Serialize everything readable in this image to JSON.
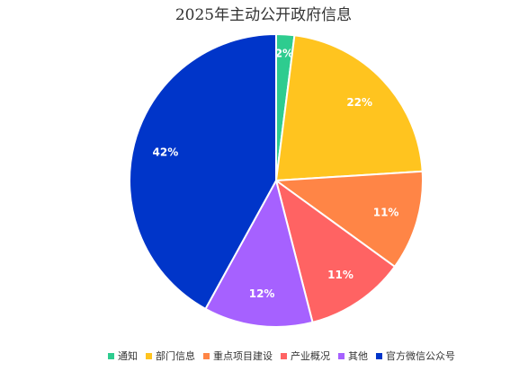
{
  "chart_data": {
    "type": "pie",
    "title": "2025年主动公开政府信息",
    "legend_position": "bottom",
    "slices": [
      {
        "label": "通知",
        "value": 2,
        "display": "2%",
        "color": "#2ecc8f"
      },
      {
        "label": "部门信息",
        "value": 22,
        "display": "22%",
        "color": "#ffc41f"
      },
      {
        "label": "重点项目建设",
        "value": 11,
        "display": "11%",
        "color": "#ff8546"
      },
      {
        "label": "产业概况",
        "value": 11,
        "display": "11%",
        "color": "#ff6363"
      },
      {
        "label": "其他",
        "value": 12,
        "display": "12%",
        "color": "#a661ff"
      },
      {
        "label": "官方微信公众号",
        "value": 42,
        "display": "42%",
        "color": "#0035c9"
      }
    ]
  }
}
